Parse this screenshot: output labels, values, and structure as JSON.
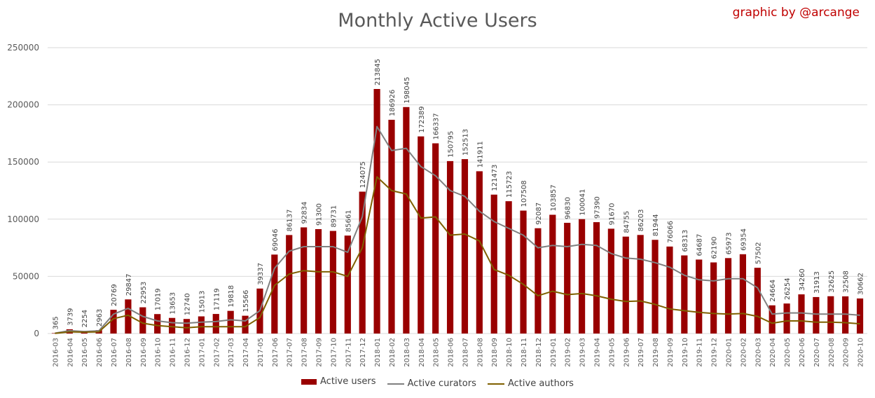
{
  "chart_data": {
    "type": "bar",
    "title": "Monthly Active Users",
    "credit": "graphic by @arcange",
    "ylim": [
      0,
      250000
    ],
    "yticks": [
      "0",
      "50000",
      "100000",
      "150000",
      "200000",
      "250000"
    ],
    "ytick_values": [
      0,
      50000,
      100000,
      150000,
      200000,
      250000
    ],
    "grid": true,
    "legend_position": "bottom",
    "categories": [
      "2016-03",
      "2016-04",
      "2016-05",
      "2016-06",
      "2016-07",
      "2016-08",
      "2016-09",
      "2016-10",
      "2016-11",
      "2016-12",
      "2017-01",
      "2017-02",
      "2017-03",
      "2017-04",
      "2017-05",
      "2017-06",
      "2017-07",
      "2017-08",
      "2017-09",
      "2017-10",
      "2017-11",
      "2017-12",
      "2018-01",
      "2018-02",
      "2018-03",
      "2018-04",
      "2018-05",
      "2018-06",
      "2018-07",
      "2018-08",
      "2018-09",
      "2018-10",
      "2018-11",
      "2018-12",
      "2019-01",
      "2019-02",
      "2019-03",
      "2019-04",
      "2019-05",
      "2019-06",
      "2019-07",
      "2019-08",
      "2019-09",
      "2019-10",
      "2019-11",
      "2019-12",
      "2020-01",
      "2020-02",
      "2020-03",
      "2020-04",
      "2020-05",
      "2020-06",
      "2020-07",
      "2020-08",
      "2020-09",
      "2020-10"
    ],
    "series": [
      {
        "name": "Active users",
        "kind": "bar",
        "color": "#990000",
        "values": [
          365,
          3739,
          2254,
          2963,
          20769,
          29847,
          22953,
          17019,
          13653,
          12740,
          15013,
          17119,
          19818,
          15566,
          39337,
          69046,
          86137,
          92834,
          91300,
          89731,
          85661,
          124075,
          213845,
          186926,
          198045,
          172389,
          166337,
          150795,
          152513,
          141911,
          121473,
          115723,
          107508,
          92087,
          103857,
          96830,
          100041,
          97390,
          91670,
          84755,
          86203,
          81944,
          76066,
          68313,
          64687,
          62190,
          65973,
          69354,
          57502,
          24664,
          26254,
          34260,
          31913,
          32625,
          32508,
          30662
        ]
      },
      {
        "name": "Active curators",
        "kind": "line",
        "color": "#808080",
        "values": [
          300,
          2500,
          1800,
          2400,
          17000,
          22000,
          15000,
          11000,
          9500,
          9000,
          10000,
          10500,
          12000,
          11000,
          20000,
          57000,
          72000,
          76000,
          76000,
          76000,
          71000,
          102000,
          181000,
          160000,
          162000,
          146000,
          138000,
          125000,
          120000,
          107000,
          98000,
          92000,
          86000,
          75000,
          77000,
          76000,
          78000,
          77000,
          70000,
          66000,
          65000,
          62000,
          58000,
          51000,
          47000,
          46000,
          48000,
          48000,
          40000,
          17000,
          18000,
          18000,
          17000,
          17000,
          17000,
          16000
        ]
      },
      {
        "name": "Active authors",
        "kind": "line",
        "color": "#7f6000",
        "values": [
          200,
          1500,
          1200,
          1500,
          13000,
          16000,
          9000,
          7000,
          6000,
          5000,
          6000,
          6000,
          6000,
          6000,
          14000,
          42000,
          52000,
          55000,
          54000,
          54000,
          50000,
          75000,
          137000,
          125000,
          122000,
          101000,
          102000,
          86000,
          87000,
          81000,
          56000,
          51000,
          43000,
          33000,
          37000,
          34000,
          35000,
          33000,
          30000,
          28000,
          28500,
          25500,
          21500,
          20000,
          18500,
          17500,
          17000,
          17500,
          15000,
          9000,
          11000,
          11000,
          10000,
          10000,
          9500,
          8500
        ]
      }
    ]
  }
}
